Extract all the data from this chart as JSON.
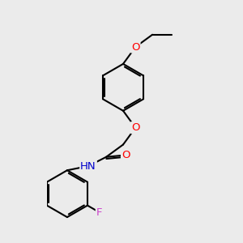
{
  "background_color": "#ebebeb",
  "bond_color": "#000000",
  "bond_width": 1.5,
  "atom_colors": {
    "O": "#ff0000",
    "N": "#0000cc",
    "F": "#cc44cc",
    "C": "#000000",
    "H": "#555555"
  },
  "font_size": 9.5,
  "dbo": 0.055
}
